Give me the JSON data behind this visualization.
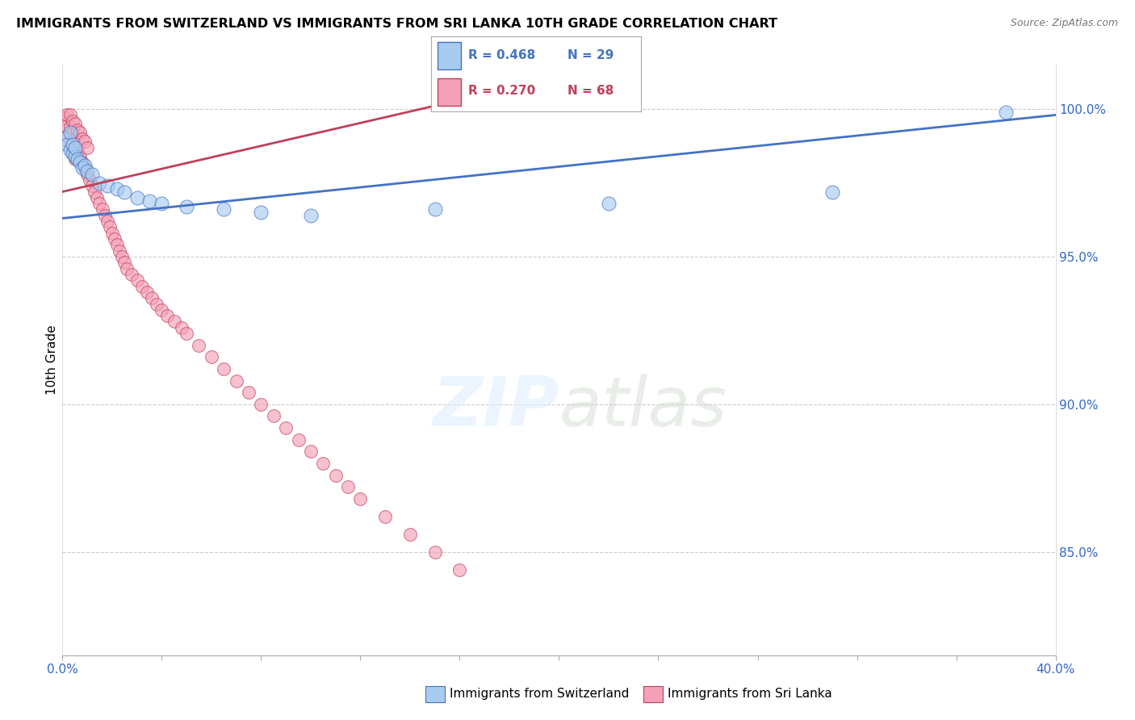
{
  "title": "IMMIGRANTS FROM SWITZERLAND VS IMMIGRANTS FROM SRI LANKA 10TH GRADE CORRELATION CHART",
  "source": "Source: ZipAtlas.com",
  "ylabel": "10th Grade",
  "right_yticks": [
    "100.0%",
    "95.0%",
    "90.0%",
    "85.0%"
  ],
  "right_ytick_vals": [
    1.0,
    0.95,
    0.9,
    0.85
  ],
  "xlim": [
    0.0,
    0.4
  ],
  "ylim": [
    0.815,
    1.015
  ],
  "legend_r1": "R = 0.468",
  "legend_n1": "N = 29",
  "legend_r2": "R = 0.270",
  "legend_n2": "N = 68",
  "color_swiss": "#a8ccf0",
  "color_srilanka": "#f4a0b8",
  "line_color_swiss": "#4472c4",
  "line_color_srilanka": "#c0405a",
  "swiss_x": [
    0.001,
    0.002,
    0.003,
    0.003,
    0.004,
    0.004,
    0.005,
    0.005,
    0.006,
    0.007,
    0.008,
    0.009,
    0.01,
    0.012,
    0.015,
    0.018,
    0.022,
    0.025,
    0.03,
    0.035,
    0.04,
    0.05,
    0.065,
    0.08,
    0.1,
    0.15,
    0.22,
    0.31,
    0.38
  ],
  "swiss_y": [
    0.99,
    0.988,
    0.992,
    0.986,
    0.985,
    0.988,
    0.984,
    0.987,
    0.983,
    0.982,
    0.98,
    0.981,
    0.979,
    0.978,
    0.975,
    0.974,
    0.973,
    0.972,
    0.97,
    0.969,
    0.968,
    0.967,
    0.966,
    0.965,
    0.964,
    0.966,
    0.968,
    0.972,
    0.999
  ],
  "srilanka_x": [
    0.001,
    0.001,
    0.002,
    0.002,
    0.003,
    0.003,
    0.003,
    0.004,
    0.004,
    0.004,
    0.005,
    0.005,
    0.005,
    0.006,
    0.006,
    0.007,
    0.007,
    0.008,
    0.008,
    0.009,
    0.009,
    0.01,
    0.01,
    0.011,
    0.012,
    0.013,
    0.014,
    0.015,
    0.016,
    0.017,
    0.018,
    0.019,
    0.02,
    0.021,
    0.022,
    0.023,
    0.024,
    0.025,
    0.026,
    0.028,
    0.03,
    0.032,
    0.034,
    0.036,
    0.038,
    0.04,
    0.042,
    0.045,
    0.048,
    0.05,
    0.055,
    0.06,
    0.065,
    0.07,
    0.075,
    0.08,
    0.085,
    0.09,
    0.095,
    0.1,
    0.105,
    0.11,
    0.115,
    0.12,
    0.13,
    0.14,
    0.15,
    0.16
  ],
  "srilanka_y": [
    0.997,
    0.994,
    0.998,
    0.991,
    0.998,
    0.994,
    0.988,
    0.996,
    0.992,
    0.985,
    0.995,
    0.99,
    0.983,
    0.993,
    0.986,
    0.992,
    0.984,
    0.99,
    0.982,
    0.989,
    0.98,
    0.987,
    0.978,
    0.976,
    0.974,
    0.972,
    0.97,
    0.968,
    0.966,
    0.964,
    0.962,
    0.96,
    0.958,
    0.956,
    0.954,
    0.952,
    0.95,
    0.948,
    0.946,
    0.944,
    0.942,
    0.94,
    0.938,
    0.936,
    0.934,
    0.932,
    0.93,
    0.928,
    0.926,
    0.924,
    0.92,
    0.916,
    0.912,
    0.908,
    0.904,
    0.9,
    0.896,
    0.892,
    0.888,
    0.884,
    0.88,
    0.876,
    0.872,
    0.868,
    0.862,
    0.856,
    0.85,
    0.844
  ],
  "swiss_line_x": [
    0.0,
    0.4
  ],
  "swiss_line_y": [
    0.963,
    0.998
  ],
  "srilanka_line_x": [
    0.0,
    0.17
  ],
  "srilanka_line_y": [
    0.972,
    1.005
  ]
}
